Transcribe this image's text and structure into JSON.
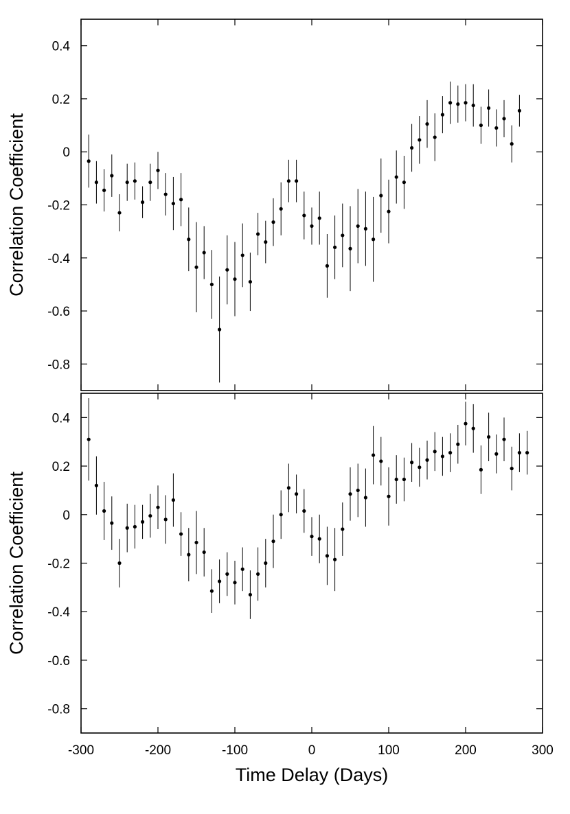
{
  "chart_data": [
    {
      "type": "scatter",
      "panel": "top",
      "ylabel": "Correlation Coefficient",
      "xlim": [
        -300,
        300
      ],
      "ylim": [
        -0.9,
        0.5
      ],
      "xticks": [
        -300,
        -200,
        -100,
        0,
        100,
        200,
        300
      ],
      "yticks": [
        -0.8,
        -0.6,
        -0.4,
        -0.2,
        0,
        0.2,
        0.4
      ],
      "ytick_labels": [
        "-0.8",
        "-0.6",
        "-0.4",
        "-0.2",
        "0",
        "0.2",
        "0.4"
      ],
      "points": [
        {
          "x": -290,
          "y": -0.035,
          "err": 0.1
        },
        {
          "x": -280,
          "y": -0.115,
          "err": 0.08
        },
        {
          "x": -270,
          "y": -0.145,
          "err": 0.08
        },
        {
          "x": -260,
          "y": -0.09,
          "err": 0.08
        },
        {
          "x": -250,
          "y": -0.23,
          "err": 0.07
        },
        {
          "x": -240,
          "y": -0.115,
          "err": 0.07
        },
        {
          "x": -230,
          "y": -0.11,
          "err": 0.07
        },
        {
          "x": -220,
          "y": -0.19,
          "err": 0.06
        },
        {
          "x": -210,
          "y": -0.115,
          "err": 0.07
        },
        {
          "x": -200,
          "y": -0.07,
          "err": 0.07
        },
        {
          "x": -190,
          "y": -0.16,
          "err": 0.08
        },
        {
          "x": -180,
          "y": -0.195,
          "err": 0.1
        },
        {
          "x": -170,
          "y": -0.18,
          "err": 0.1
        },
        {
          "x": -160,
          "y": -0.33,
          "err": 0.12
        },
        {
          "x": -150,
          "y": -0.435,
          "err": 0.17
        },
        {
          "x": -140,
          "y": -0.38,
          "err": 0.1
        },
        {
          "x": -130,
          "y": -0.5,
          "err": 0.13
        },
        {
          "x": -120,
          "y": -0.67,
          "err": 0.2
        },
        {
          "x": -110,
          "y": -0.445,
          "err": 0.13
        },
        {
          "x": -100,
          "y": -0.48,
          "err": 0.14
        },
        {
          "x": -90,
          "y": -0.39,
          "err": 0.12
        },
        {
          "x": -80,
          "y": -0.49,
          "err": 0.11
        },
        {
          "x": -70,
          "y": -0.31,
          "err": 0.08
        },
        {
          "x": -60,
          "y": -0.34,
          "err": 0.08
        },
        {
          "x": -50,
          "y": -0.265,
          "err": 0.09
        },
        {
          "x": -40,
          "y": -0.215,
          "err": 0.1
        },
        {
          "x": -30,
          "y": -0.11,
          "err": 0.08
        },
        {
          "x": -20,
          "y": -0.11,
          "err": 0.08
        },
        {
          "x": -10,
          "y": -0.24,
          "err": 0.09
        },
        {
          "x": 0,
          "y": -0.28,
          "err": 0.07
        },
        {
          "x": 10,
          "y": -0.25,
          "err": 0.1
        },
        {
          "x": 20,
          "y": -0.43,
          "err": 0.12
        },
        {
          "x": 30,
          "y": -0.36,
          "err": 0.12
        },
        {
          "x": 40,
          "y": -0.315,
          "err": 0.12
        },
        {
          "x": 50,
          "y": -0.365,
          "err": 0.16
        },
        {
          "x": 60,
          "y": -0.28,
          "err": 0.14
        },
        {
          "x": 70,
          "y": -0.29,
          "err": 0.14
        },
        {
          "x": 80,
          "y": -0.33,
          "err": 0.16
        },
        {
          "x": 90,
          "y": -0.165,
          "err": 0.14
        },
        {
          "x": 100,
          "y": -0.225,
          "err": 0.12
        },
        {
          "x": 110,
          "y": -0.095,
          "err": 0.1
        },
        {
          "x": 120,
          "y": -0.115,
          "err": 0.1
        },
        {
          "x": 130,
          "y": 0.015,
          "err": 0.09
        },
        {
          "x": 140,
          "y": 0.045,
          "err": 0.09
        },
        {
          "x": 150,
          "y": 0.105,
          "err": 0.09
        },
        {
          "x": 160,
          "y": 0.055,
          "err": 0.09
        },
        {
          "x": 170,
          "y": 0.14,
          "err": 0.07
        },
        {
          "x": 180,
          "y": 0.185,
          "err": 0.08
        },
        {
          "x": 190,
          "y": 0.18,
          "err": 0.07
        },
        {
          "x": 200,
          "y": 0.185,
          "err": 0.07
        },
        {
          "x": 210,
          "y": 0.175,
          "err": 0.08
        },
        {
          "x": 220,
          "y": 0.1,
          "err": 0.07
        },
        {
          "x": 230,
          "y": 0.165,
          "err": 0.07
        },
        {
          "x": 240,
          "y": 0.09,
          "err": 0.07
        },
        {
          "x": 250,
          "y": 0.125,
          "err": 0.07
        },
        {
          "x": 260,
          "y": 0.03,
          "err": 0.07
        },
        {
          "x": 270,
          "y": 0.155,
          "err": 0.06
        }
      ]
    },
    {
      "type": "scatter",
      "panel": "bottom",
      "xlabel": "Time Delay (Days)",
      "ylabel": "Correlation Coefficient",
      "xlim": [
        -300,
        300
      ],
      "ylim": [
        -0.9,
        0.5
      ],
      "xticks": [
        -300,
        -200,
        -100,
        0,
        100,
        200,
        300
      ],
      "xtick_labels": [
        "-300",
        "-200",
        "-100",
        "0",
        "100",
        "200",
        "300"
      ],
      "yticks": [
        -0.8,
        -0.6,
        -0.4,
        -0.2,
        0,
        0.2,
        0.4
      ],
      "ytick_labels": [
        "-0.8",
        "-0.6",
        "-0.4",
        "-0.2",
        "0",
        "0.2",
        "0.4"
      ],
      "points": [
        {
          "x": -290,
          "y": 0.31,
          "err": 0.17
        },
        {
          "x": -280,
          "y": 0.12,
          "err": 0.12
        },
        {
          "x": -270,
          "y": 0.015,
          "err": 0.12
        },
        {
          "x": -260,
          "y": -0.035,
          "err": 0.11
        },
        {
          "x": -250,
          "y": -0.2,
          "err": 0.1
        },
        {
          "x": -240,
          "y": -0.055,
          "err": 0.1
        },
        {
          "x": -230,
          "y": -0.05,
          "err": 0.09
        },
        {
          "x": -220,
          "y": -0.03,
          "err": 0.07
        },
        {
          "x": -210,
          "y": -0.005,
          "err": 0.09
        },
        {
          "x": -200,
          "y": 0.03,
          "err": 0.09
        },
        {
          "x": -190,
          "y": -0.02,
          "err": 0.1
        },
        {
          "x": -180,
          "y": 0.06,
          "err": 0.11
        },
        {
          "x": -170,
          "y": -0.08,
          "err": 0.09
        },
        {
          "x": -160,
          "y": -0.165,
          "err": 0.11
        },
        {
          "x": -150,
          "y": -0.115,
          "err": 0.13
        },
        {
          "x": -140,
          "y": -0.155,
          "err": 0.1
        },
        {
          "x": -130,
          "y": -0.315,
          "err": 0.09
        },
        {
          "x": -120,
          "y": -0.275,
          "err": 0.09
        },
        {
          "x": -110,
          "y": -0.245,
          "err": 0.09
        },
        {
          "x": -100,
          "y": -0.28,
          "err": 0.09
        },
        {
          "x": -90,
          "y": -0.225,
          "err": 0.09
        },
        {
          "x": -80,
          "y": -0.33,
          "err": 0.1
        },
        {
          "x": -70,
          "y": -0.245,
          "err": 0.11
        },
        {
          "x": -60,
          "y": -0.2,
          "err": 0.1
        },
        {
          "x": -50,
          "y": -0.11,
          "err": 0.11
        },
        {
          "x": -40,
          "y": 0.0,
          "err": 0.1
        },
        {
          "x": -30,
          "y": 0.11,
          "err": 0.1
        },
        {
          "x": -20,
          "y": 0.085,
          "err": 0.08
        },
        {
          "x": -10,
          "y": 0.015,
          "err": 0.09
        },
        {
          "x": 0,
          "y": -0.09,
          "err": 0.08
        },
        {
          "x": 10,
          "y": -0.1,
          "err": 0.1
        },
        {
          "x": 20,
          "y": -0.17,
          "err": 0.12
        },
        {
          "x": 30,
          "y": -0.185,
          "err": 0.13
        },
        {
          "x": 40,
          "y": -0.06,
          "err": 0.11
        },
        {
          "x": 50,
          "y": 0.085,
          "err": 0.11
        },
        {
          "x": 60,
          "y": 0.1,
          "err": 0.11
        },
        {
          "x": 70,
          "y": 0.07,
          "err": 0.12
        },
        {
          "x": 80,
          "y": 0.245,
          "err": 0.12
        },
        {
          "x": 90,
          "y": 0.22,
          "err": 0.1
        },
        {
          "x": 100,
          "y": 0.075,
          "err": 0.12
        },
        {
          "x": 110,
          "y": 0.145,
          "err": 0.1
        },
        {
          "x": 120,
          "y": 0.145,
          "err": 0.09
        },
        {
          "x": 130,
          "y": 0.215,
          "err": 0.08
        },
        {
          "x": 140,
          "y": 0.195,
          "err": 0.08
        },
        {
          "x": 150,
          "y": 0.225,
          "err": 0.08
        },
        {
          "x": 160,
          "y": 0.26,
          "err": 0.08
        },
        {
          "x": 170,
          "y": 0.24,
          "err": 0.08
        },
        {
          "x": 180,
          "y": 0.255,
          "err": 0.08
        },
        {
          "x": 190,
          "y": 0.29,
          "err": 0.08
        },
        {
          "x": 200,
          "y": 0.375,
          "err": 0.09
        },
        {
          "x": 210,
          "y": 0.355,
          "err": 0.1
        },
        {
          "x": 220,
          "y": 0.185,
          "err": 0.1
        },
        {
          "x": 230,
          "y": 0.32,
          "err": 0.1
        },
        {
          "x": 240,
          "y": 0.25,
          "err": 0.08
        },
        {
          "x": 250,
          "y": 0.31,
          "err": 0.09
        },
        {
          "x": 260,
          "y": 0.19,
          "err": 0.09
        },
        {
          "x": 270,
          "y": 0.255,
          "err": 0.08
        },
        {
          "x": 280,
          "y": 0.255,
          "err": 0.09
        }
      ]
    }
  ]
}
